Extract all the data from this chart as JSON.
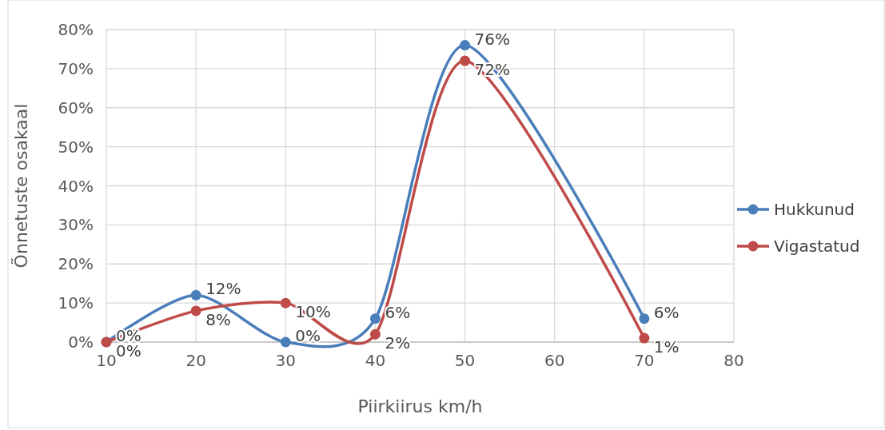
{
  "chart_data": {
    "type": "line",
    "xlabel": "Piirkiirus km/h",
    "ylabel": "Õnnetuste osakaal",
    "x": [
      10,
      20,
      30,
      40,
      50,
      70
    ],
    "series": [
      {
        "name": "Hukkunud",
        "color": "#4a7ebb",
        "values": [
          0,
          12,
          0,
          6,
          76,
          6
        ],
        "value_labels": [
          "0%",
          "12%",
          "0%",
          "6%",
          "76%",
          "6%"
        ]
      },
      {
        "name": "Vigastatud",
        "color": "#be4b48",
        "values": [
          0,
          8,
          10,
          2,
          72,
          1
        ],
        "value_labels": [
          "0%",
          "8%",
          "10%",
          "2%",
          "72%",
          "1%"
        ]
      }
    ],
    "xlim": [
      10,
      80
    ],
    "xticks": [
      10,
      20,
      30,
      40,
      50,
      60,
      70,
      80
    ],
    "ylim": [
      0,
      80
    ],
    "yticks": [
      {
        "value": 0,
        "label": "0%"
      },
      {
        "value": 10,
        "label": "10%"
      },
      {
        "value": 20,
        "label": "20%"
      },
      {
        "value": 30,
        "label": "30%"
      },
      {
        "value": 40,
        "label": "40%"
      },
      {
        "value": 50,
        "label": "50%"
      },
      {
        "value": 60,
        "label": "60%"
      },
      {
        "value": 70,
        "label": "70%"
      },
      {
        "value": 80,
        "label": "80%"
      }
    ],
    "grid": true,
    "legend": "right",
    "marker": "circle",
    "line_style": "solid"
  }
}
